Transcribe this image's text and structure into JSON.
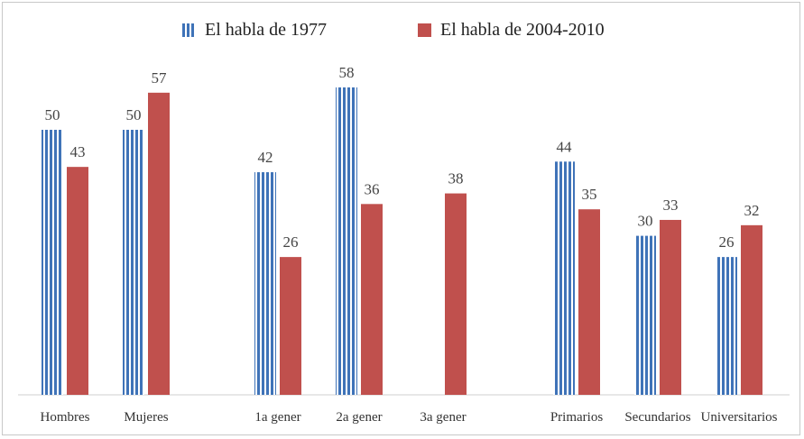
{
  "chart_data": {
    "type": "bar",
    "title": "",
    "xlabel": "",
    "ylabel": "",
    "ylim": [
      0,
      65
    ],
    "grid": false,
    "legend_position": "top-center",
    "categories": [
      "Hombres",
      "Mujeres",
      "1a gener",
      "2a gener",
      "3a gener",
      "Primarios",
      "Secundarios",
      "Universitarios"
    ],
    "series": [
      {
        "name": "El habla de 1977",
        "color": "#3f73b8",
        "pattern": "vertical-stripes",
        "values": [
          50,
          50,
          42,
          58,
          null,
          44,
          30,
          26
        ]
      },
      {
        "name": "El habla de 2004-2010",
        "color": "#c0504d",
        "pattern": "solid",
        "values": [
          43,
          57,
          26,
          36,
          38,
          35,
          33,
          32
        ]
      }
    ]
  }
}
